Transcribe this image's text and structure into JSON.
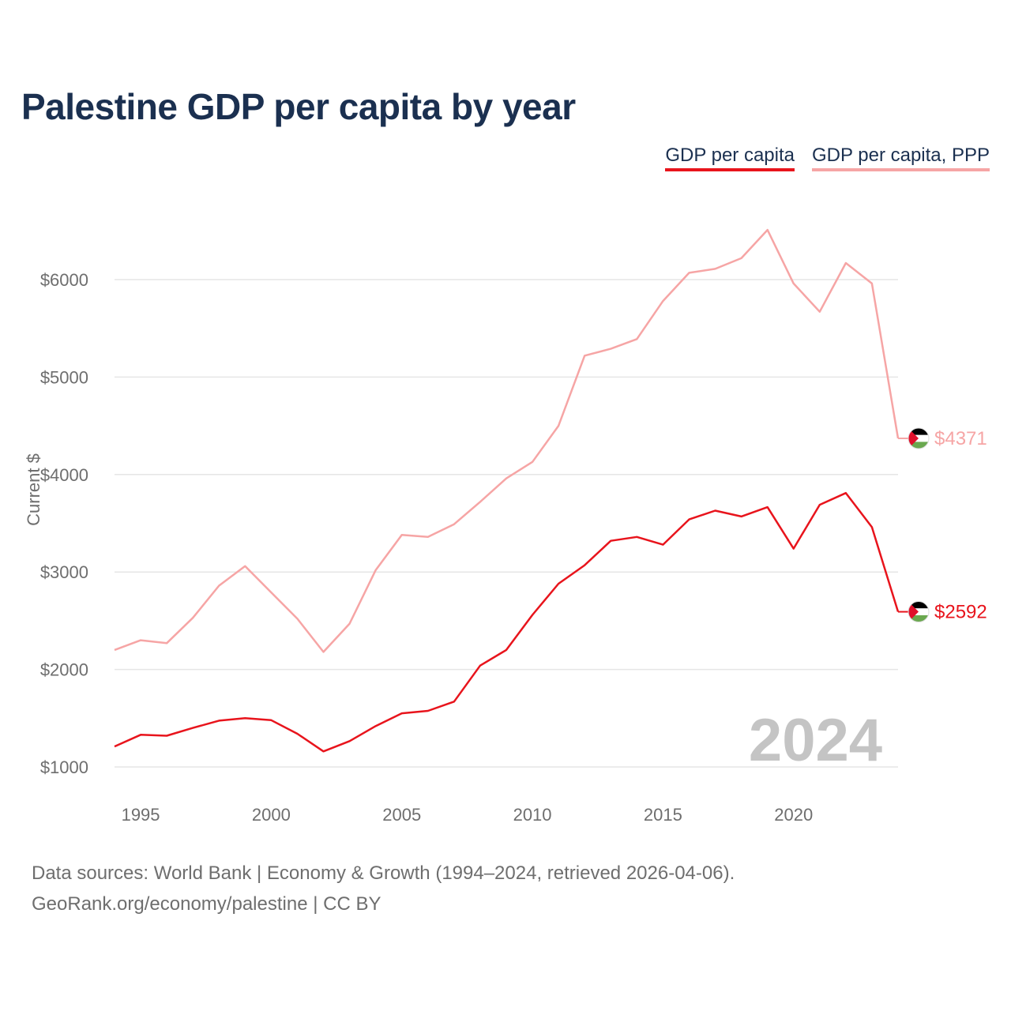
{
  "title": "Palestine GDP per capita by year",
  "legend": {
    "gdp_label": "GDP per capita",
    "ppp_label": "GDP per capita, PPP"
  },
  "colors": {
    "gdp": "#e8141c",
    "ppp": "#f6a5a5",
    "title": "#1b3050",
    "grid": "#e6e6e6",
    "year_watermark": "#c4c4c4"
  },
  "chart_data": {
    "type": "line",
    "title": "Palestine GDP per capita by year",
    "xlabel": "",
    "ylabel": "Current $",
    "x": [
      1994,
      1995,
      1996,
      1997,
      1998,
      1999,
      2000,
      2001,
      2002,
      2003,
      2004,
      2005,
      2006,
      2007,
      2008,
      2009,
      2010,
      2011,
      2012,
      2013,
      2014,
      2015,
      2016,
      2017,
      2018,
      2019,
      2020,
      2021,
      2022,
      2023,
      2024
    ],
    "xlim": [
      1994,
      2024
    ],
    "ylim": [
      1000,
      6500
    ],
    "x_ticks": [
      1995,
      2000,
      2005,
      2010,
      2015,
      2020
    ],
    "y_ticks": [
      1000,
      2000,
      3000,
      4000,
      5000,
      6000
    ],
    "y_tick_labels": [
      "$1000",
      "$2000",
      "$3000",
      "$4000",
      "$5000",
      "$6000"
    ],
    "grid": true,
    "current_year": "2024",
    "series": [
      {
        "name": "GDP per capita",
        "key": "gdp",
        "values": [
          1210,
          1330,
          1320,
          1400,
          1475,
          1500,
          1480,
          1340,
          1160,
          1265,
          1420,
          1550,
          1575,
          1670,
          2040,
          2200,
          2560,
          2880,
          3070,
          3320,
          3360,
          3280,
          3540,
          3630,
          3570,
          3665,
          3240,
          3690,
          3810,
          3460,
          2592
        ],
        "end_label": "$2592"
      },
      {
        "name": "GDP per capita, PPP",
        "key": "ppp",
        "values": [
          2200,
          2300,
          2270,
          2530,
          2860,
          3060,
          2790,
          2520,
          2180,
          2470,
          3020,
          3380,
          3360,
          3490,
          3720,
          3960,
          4130,
          4500,
          5220,
          5290,
          5390,
          5780,
          6070,
          6110,
          6220,
          6510,
          5960,
          5670,
          6170,
          5960,
          4371
        ],
        "end_label": "$4371"
      }
    ]
  },
  "footer": {
    "line1": "Data sources: World Bank | Economy & Growth (1994–2024, retrieved 2026-04-06).",
    "line2": "GeoRank.org/economy/palestine | CC BY"
  }
}
